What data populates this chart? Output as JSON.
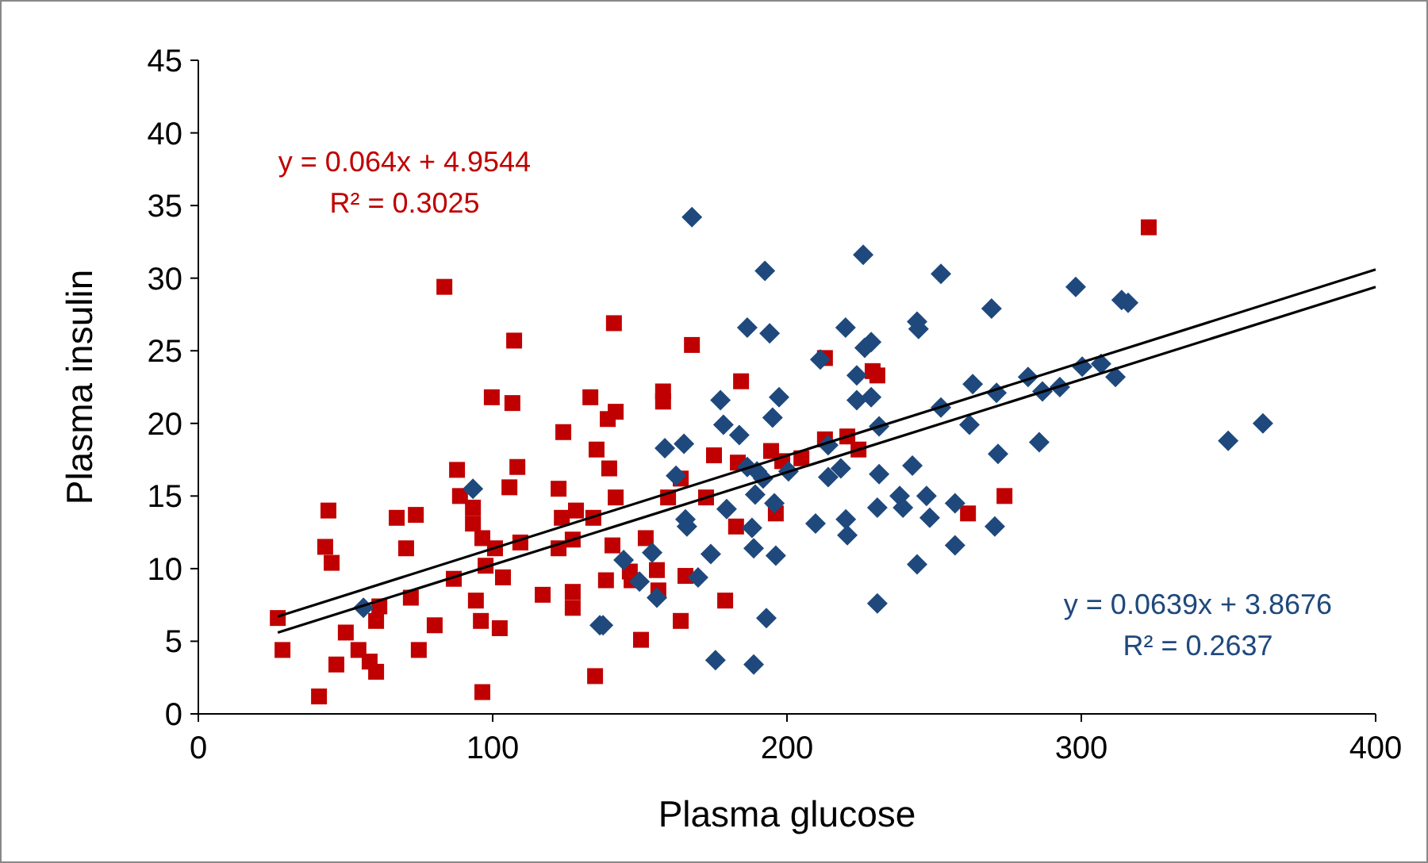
{
  "chart_data": {
    "type": "scatter",
    "xlabel": "Plasma glucose",
    "ylabel": "Plasma insulin",
    "xlim": [
      0,
      400
    ],
    "ylim": [
      0,
      45
    ],
    "xticks": [
      0,
      100,
      200,
      300,
      400
    ],
    "yticks": [
      0,
      5,
      10,
      15,
      20,
      25,
      30,
      35,
      40,
      45
    ],
    "grid": false,
    "annotations": [
      "y = 0.064x + 4.9544",
      "R² = 0.3025",
      "y = 0.0639x + 3.8676",
      "R² = 0.2637"
    ],
    "series": [
      {
        "color": "#c00000",
        "marker": "square",
        "x": [
          83.6,
          107.3,
          99.7,
          106.7,
          133.2,
          124.0,
          135.3,
          87.9,
          108.4,
          105.7,
          122.4,
          44.2,
          67.4,
          73.9,
          88.9,
          93.3,
          93.3,
          96.5,
          100.8,
          109.4,
          122.4,
          123.5,
          128.3,
          127.2,
          134.2,
          43.1,
          45.3,
          70.6,
          86.8,
          97.6,
          103.5,
          72.2,
          61.5,
          94.3,
          117.0,
          127.2,
          127.2,
          27.0,
          60.4,
          80.3,
          96.0,
          102.4,
          50.1,
          28.6,
          54.4,
          58.2,
          60.4,
          46.9,
          74.9,
          41.0,
          96.5,
          134.8,
          141.2,
          167.7,
          184.4,
          157.9,
          157.9,
          141.8,
          139.1,
          139.6,
          141.8,
          140.7,
          138.5,
          146.6,
          147.2,
          152.0,
          155.8,
          156.3,
          165.5,
          163.9,
          150.4,
          179.0,
          163.9,
          159.6,
          172.5,
          175.2,
          183.3,
          182.7,
          194.6,
          196.2,
          198.4,
          204.9,
          212.9,
          220.5,
          224.3,
          212.9,
          229.1,
          230.7,
          261.5,
          273.9,
          322.9
        ],
        "values": [
          29.4,
          25.7,
          21.8,
          21.4,
          21.8,
          19.4,
          18.2,
          16.8,
          17.0,
          15.6,
          15.5,
          14.0,
          13.5,
          13.7,
          15.0,
          14.2,
          13.1,
          12.1,
          11.4,
          11.8,
          11.4,
          13.5,
          14.0,
          12.0,
          13.5,
          11.5,
          10.4,
          11.4,
          9.3,
          10.2,
          9.4,
          8.0,
          7.4,
          7.8,
          8.2,
          8.4,
          7.3,
          6.6,
          6.4,
          6.1,
          6.4,
          5.9,
          5.6,
          4.4,
          4.4,
          3.6,
          2.9,
          3.4,
          4.4,
          1.2,
          1.5,
          2.6,
          26.9,
          25.4,
          22.9,
          22.2,
          21.5,
          20.8,
          20.3,
          16.9,
          14.9,
          11.6,
          9.2,
          9.8,
          9.2,
          12.1,
          9.9,
          8.5,
          9.5,
          6.4,
          5.1,
          7.8,
          16.2,
          14.9,
          14.9,
          17.8,
          17.3,
          12.9,
          18.1,
          13.8,
          17.4,
          17.6,
          18.9,
          19.1,
          18.2,
          24.5,
          23.6,
          23.3,
          13.8,
          15.0,
          33.5
        ]
      },
      {
        "color": "#1f497d",
        "marker": "diamond",
        "x": [
          93.3,
          56.1,
          136.4,
          167.7,
          192.5,
          225.9,
          252.3,
          269.5,
          186.5,
          194.1,
          219.9,
          226.4,
          228.6,
          244.2,
          244.7,
          211.3,
          223.7,
          177.4,
          197.3,
          195.1,
          223.7,
          228.6,
          178.4,
          183.8,
          158.5,
          165.0,
          263.1,
          252.3,
          262.0,
          231.3,
          271.7,
          214.0,
          218.3,
          186.5,
          189.8,
          191.9,
          200.5,
          214.0,
          231.3,
          242.6,
          162.3,
          189.2,
          195.7,
          179.5,
          165.5,
          166.0,
          188.1,
          209.7,
          220.0,
          220.5,
          230.7,
          238.3,
          239.4,
          247.4,
          248.5,
          257.1,
          270.6,
          188.7,
          196.2,
          174.1,
          154.2,
          257.1,
          244.2,
          144.5,
          149.9,
          155.8,
          169.8,
          137.5,
          193.0,
          230.7,
          175.7,
          188.7,
          298.1,
          313.7,
          315.9,
          271.2,
          281.9,
          286.8,
          292.7,
          300.3,
          306.7,
          311.6,
          285.7,
          349.9,
          361.7
        ],
        "values": [
          15.5,
          7.3,
          6.1,
          34.2,
          30.5,
          31.6,
          30.3,
          27.9,
          26.6,
          26.2,
          26.6,
          25.2,
          25.6,
          27.0,
          26.5,
          24.4,
          23.3,
          21.6,
          21.8,
          20.4,
          21.6,
          21.8,
          19.9,
          19.2,
          18.3,
          18.6,
          22.7,
          21.1,
          19.9,
          19.8,
          17.9,
          18.5,
          16.9,
          17.0,
          16.7,
          16.2,
          16.7,
          16.3,
          16.5,
          17.1,
          16.4,
          15.1,
          14.5,
          14.1,
          13.4,
          12.9,
          12.8,
          13.1,
          13.4,
          12.3,
          14.2,
          15.0,
          14.2,
          15.0,
          13.5,
          14.5,
          12.9,
          11.4,
          10.9,
          11.0,
          11.1,
          11.6,
          10.3,
          10.6,
          9.1,
          8.0,
          9.4,
          6.1,
          6.6,
          7.6,
          3.7,
          3.4,
          29.4,
          28.5,
          28.3,
          22.1,
          23.2,
          22.2,
          22.5,
          23.9,
          24.1,
          23.2,
          18.7,
          18.8,
          20.0
        ]
      },
      {
        "type": "line",
        "color": "#000000",
        "marker": "none",
        "x": [
          27,
          400
        ],
        "values": [
          6.7,
          30.6
        ]
      },
      {
        "type": "line",
        "color": "#000000",
        "marker": "none",
        "x": [
          27,
          400
        ],
        "values": [
          5.6,
          29.4
        ]
      }
    ]
  }
}
